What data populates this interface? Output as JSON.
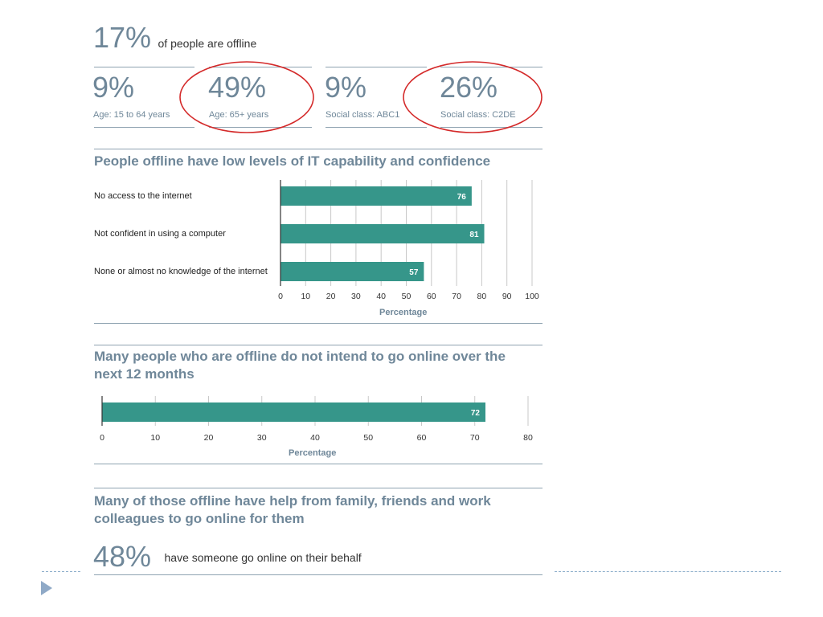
{
  "headline": {
    "value": "17%",
    "text": "of people are offline"
  },
  "stats": [
    {
      "value": "9%",
      "label": "Age: 15 to 64 years",
      "circled": false
    },
    {
      "value": "49%",
      "label": "Age: 65+ years",
      "circled": true
    },
    {
      "value": "9%",
      "label": "Social class: ABC1",
      "circled": false
    },
    {
      "value": "26%",
      "label": "Social class: C2DE",
      "circled": true
    }
  ],
  "colors": {
    "bar": "#36968a",
    "slate": "#6f8799",
    "circle": "#d42a2a",
    "grid": "#c8c8c8"
  },
  "chart_data": [
    {
      "type": "bar",
      "orientation": "horizontal",
      "title": "People offline have low levels of IT capability and confidence",
      "categories": [
        "No access to the internet",
        "Not confident in using a computer",
        "None or almost no knowledge of the internet"
      ],
      "values": [
        76,
        81,
        57
      ],
      "xlabel": "Percentage",
      "xlim": [
        0,
        100
      ],
      "ticks": [
        0,
        10,
        20,
        30,
        40,
        50,
        60,
        70,
        80,
        90,
        100
      ],
      "grid": true
    },
    {
      "type": "bar",
      "orientation": "horizontal",
      "title": "Many people who are offline do not intend to go online over the next 12 months",
      "categories": [
        ""
      ],
      "values": [
        72
      ],
      "xlabel": "Percentage",
      "xlim": [
        0,
        80
      ],
      "ticks": [
        0,
        10,
        20,
        30,
        40,
        50,
        60,
        70,
        80
      ],
      "grid": true
    }
  ],
  "section3": {
    "title": "Many of those offline have help from family, friends and work colleagues to go online for them",
    "value": "48%",
    "text": "have someone go online on their behalf"
  },
  "footer": {
    "nav_icon": "play-triangle-icon"
  }
}
